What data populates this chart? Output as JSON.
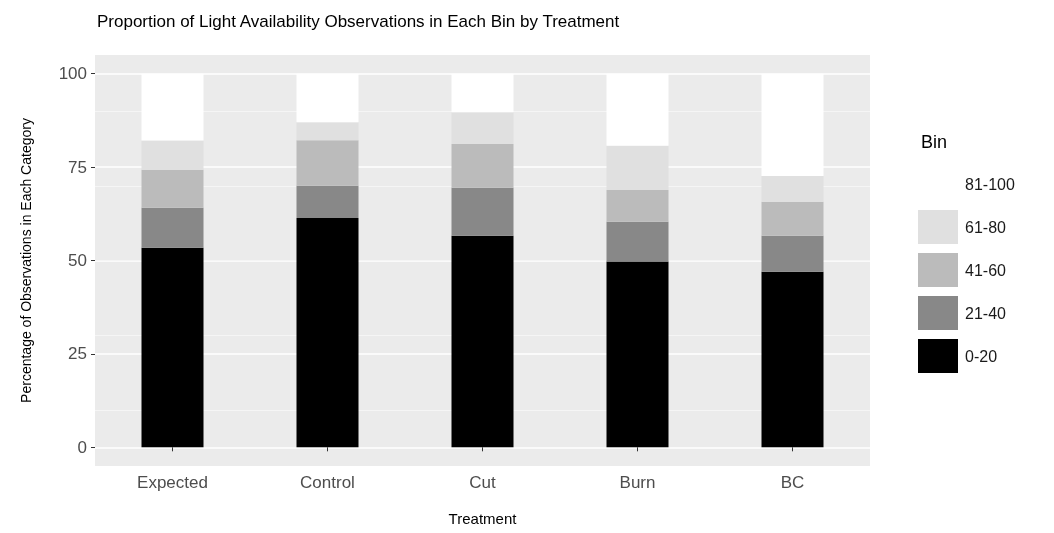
{
  "chart_data": {
    "type": "bar",
    "title": "Proportion of Light Availability Observations in Each Bin by Treatment",
    "xlabel": "Treatment",
    "ylabel": "Percentage of Observations in Each Category",
    "legend_title": "Bin",
    "categories": [
      "Expected",
      "Control",
      "Cut",
      "Burn",
      "BC"
    ],
    "stacked": true,
    "series": [
      {
        "name": "0-20",
        "color": "#000000",
        "values": [
          53.4,
          61.4,
          56.6,
          49.7,
          47.0
        ]
      },
      {
        "name": "21-40",
        "color": "#888888",
        "values": [
          10.7,
          8.6,
          12.9,
          10.7,
          9.6
        ]
      },
      {
        "name": "41-60",
        "color": "#bbbbbb",
        "values": [
          10.2,
          12.2,
          11.7,
          8.5,
          9.1
        ]
      },
      {
        "name": "61-80",
        "color": "#e0e0e0",
        "values": [
          7.8,
          4.8,
          8.5,
          11.8,
          6.9
        ]
      },
      {
        "name": "81-100",
        "color": "#ffffff",
        "values": [
          17.9,
          13.0,
          10.3,
          19.3,
          27.4
        ]
      }
    ],
    "ylim": [
      -5,
      105
    ],
    "yticks": [
      0,
      25,
      50,
      75,
      100
    ],
    "grid": "y",
    "legend": "right"
  }
}
